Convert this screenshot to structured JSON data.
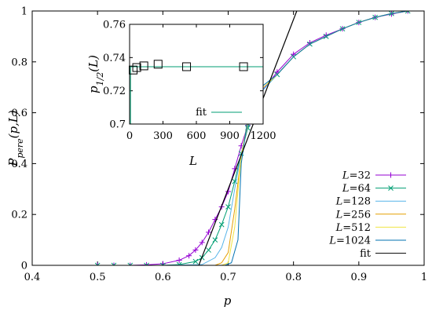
{
  "chart_data": [
    {
      "type": "line",
      "title": "",
      "xlabel": "p",
      "ylabel": "P_pere(p,L)",
      "xlim": [
        0.4,
        1.0
      ],
      "ylim": [
        0,
        1
      ],
      "xticks": [
        "0.4",
        "0.5",
        "0.6",
        "0.7",
        "0.8",
        "0.9",
        "1"
      ],
      "yticks": [
        "0",
        "0.2",
        "0.4",
        "0.6",
        "0.8",
        "1"
      ],
      "grid": false,
      "legend_position": "bottom-right",
      "series": [
        {
          "name": "L=32",
          "color": "#9400d3",
          "marker": "plus",
          "points": [
            [
              0.5,
              0
            ],
            [
              0.525,
              0
            ],
            [
              0.55,
              0
            ],
            [
              0.575,
              0.002
            ],
            [
              0.6,
              0.006
            ],
            [
              0.625,
              0.02
            ],
            [
              0.64,
              0.038
            ],
            [
              0.65,
              0.06
            ],
            [
              0.66,
              0.09
            ],
            [
              0.67,
              0.13
            ],
            [
              0.68,
              0.18
            ],
            [
              0.69,
              0.23
            ],
            [
              0.7,
              0.29
            ],
            [
              0.71,
              0.38
            ],
            [
              0.72,
              0.47
            ],
            [
              0.73,
              0.55
            ],
            [
              0.74,
              0.62
            ],
            [
              0.75,
              0.68
            ],
            [
              0.775,
              0.76
            ],
            [
              0.8,
              0.83
            ],
            [
              0.825,
              0.875
            ],
            [
              0.85,
              0.905
            ],
            [
              0.875,
              0.93
            ],
            [
              0.9,
              0.955
            ],
            [
              0.925,
              0.975
            ],
            [
              0.95,
              0.988
            ],
            [
              0.975,
              1.0
            ]
          ]
        },
        {
          "name": "L=64",
          "color": "#009e73",
          "marker": "cross",
          "points": [
            [
              0.5,
              0
            ],
            [
              0.525,
              0
            ],
            [
              0.55,
              0
            ],
            [
              0.575,
              0
            ],
            [
              0.6,
              0
            ],
            [
              0.625,
              0.003
            ],
            [
              0.65,
              0.015
            ],
            [
              0.66,
              0.03
            ],
            [
              0.67,
              0.06
            ],
            [
              0.68,
              0.1
            ],
            [
              0.69,
              0.16
            ],
            [
              0.7,
              0.23
            ],
            [
              0.71,
              0.33
            ],
            [
              0.72,
              0.44
            ],
            [
              0.73,
              0.54
            ],
            [
              0.74,
              0.62
            ],
            [
              0.75,
              0.68
            ],
            [
              0.775,
              0.75
            ],
            [
              0.8,
              0.82
            ],
            [
              0.825,
              0.87
            ],
            [
              0.85,
              0.9
            ],
            [
              0.875,
              0.93
            ],
            [
              0.9,
              0.955
            ],
            [
              0.925,
              0.975
            ],
            [
              0.95,
              0.99
            ],
            [
              0.975,
              1.0
            ]
          ]
        },
        {
          "name": "L=128",
          "color": "#56b4e9",
          "marker": "none",
          "points": [
            [
              0.5,
              0
            ],
            [
              0.6,
              0
            ],
            [
              0.66,
              0.003
            ],
            [
              0.68,
              0.03
            ],
            [
              0.69,
              0.07
            ],
            [
              0.7,
              0.15
            ],
            [
              0.71,
              0.3
            ],
            [
              0.72,
              0.44
            ],
            [
              0.73,
              0.55
            ],
            [
              0.74,
              0.63
            ],
            [
              0.75,
              0.68
            ],
            [
              0.775,
              0.75
            ],
            [
              0.8,
              0.82
            ],
            [
              0.825,
              0.87
            ],
            [
              0.85,
              0.9
            ],
            [
              0.875,
              0.93
            ],
            [
              0.9,
              0.955
            ],
            [
              0.925,
              0.975
            ],
            [
              0.95,
              0.99
            ],
            [
              0.975,
              1.0
            ]
          ]
        },
        {
          "name": "L=256",
          "color": "#e69f00",
          "marker": "none",
          "points": [
            [
              0.5,
              0
            ],
            [
              0.6,
              0
            ],
            [
              0.68,
              0
            ],
            [
              0.69,
              0.01
            ],
            [
              0.7,
              0.05
            ],
            [
              0.71,
              0.22
            ],
            [
              0.72,
              0.43
            ],
            [
              0.73,
              0.56
            ],
            [
              0.74,
              0.64
            ],
            [
              0.75,
              0.69
            ],
            [
              0.775,
              0.75
            ],
            [
              0.8,
              0.82
            ],
            [
              0.825,
              0.87
            ],
            [
              0.85,
              0.9
            ],
            [
              0.875,
              0.93
            ],
            [
              0.9,
              0.955
            ],
            [
              0.925,
              0.975
            ],
            [
              0.95,
              0.99
            ],
            [
              0.975,
              1.0
            ]
          ]
        },
        {
          "name": "L=512",
          "color": "#f0e442",
          "marker": "none",
          "points": [
            [
              0.5,
              0
            ],
            [
              0.6,
              0
            ],
            [
              0.69,
              0
            ],
            [
              0.7,
              0.01
            ],
            [
              0.71,
              0.15
            ],
            [
              0.72,
              0.43
            ],
            [
              0.73,
              0.57
            ],
            [
              0.74,
              0.65
            ],
            [
              0.75,
              0.69
            ],
            [
              0.775,
              0.75
            ],
            [
              0.8,
              0.82
            ],
            [
              0.825,
              0.87
            ],
            [
              0.85,
              0.9
            ],
            [
              0.875,
              0.93
            ],
            [
              0.9,
              0.955
            ],
            [
              0.925,
              0.975
            ],
            [
              0.95,
              0.99
            ],
            [
              0.975,
              1.0
            ]
          ]
        },
        {
          "name": "L=1024",
          "color": "#0072b2",
          "marker": "none",
          "points": [
            [
              0.5,
              0
            ],
            [
              0.6,
              0
            ],
            [
              0.695,
              0
            ],
            [
              0.705,
              0.01
            ],
            [
              0.715,
              0.1
            ],
            [
              0.72,
              0.4
            ],
            [
              0.73,
              0.58
            ],
            [
              0.74,
              0.66
            ],
            [
              0.75,
              0.7
            ],
            [
              0.775,
              0.75
            ],
            [
              0.8,
              0.82
            ],
            [
              0.825,
              0.87
            ],
            [
              0.85,
              0.9
            ],
            [
              0.875,
              0.93
            ],
            [
              0.9,
              0.955
            ],
            [
              0.925,
              0.975
            ],
            [
              0.95,
              0.99
            ],
            [
              0.975,
              1.0
            ]
          ]
        },
        {
          "name": "fit",
          "color": "#000000",
          "marker": "none",
          "points": [
            [
              0.655,
              0
            ],
            [
              0.805,
              1.0
            ]
          ]
        }
      ]
    },
    {
      "type": "scatter",
      "title": "",
      "xlabel": "L",
      "ylabel": "p_1/2(L)",
      "xlim": [
        0,
        1200
      ],
      "ylim": [
        0.7,
        0.76
      ],
      "xticks": [
        "0",
        "300",
        "600",
        "900",
        "1200"
      ],
      "yticks": [
        "0.7",
        "0.72",
        "0.74",
        "0.76"
      ],
      "grid": false,
      "legend_position": "bottom-right",
      "points": {
        "marker": "square",
        "color": "#000000",
        "values": [
          [
            32,
            0.7325
          ],
          [
            64,
            0.734
          ],
          [
            128,
            0.735
          ],
          [
            256,
            0.736
          ],
          [
            512,
            0.7345
          ],
          [
            1024,
            0.7345
          ]
        ]
      },
      "fit": {
        "name": "fit",
        "color": "#009e73",
        "value": 0.7345
      }
    }
  ]
}
